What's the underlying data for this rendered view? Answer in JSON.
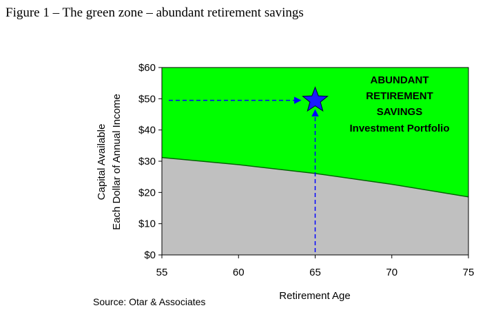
{
  "figure_title": "Figure 1 – The green zone – abundant retirement savings",
  "source": "Source: Otar & Associates",
  "chart_data": {
    "type": "area",
    "title": "",
    "xlabel": "Retirement Age",
    "ylabel_lines": [
      "Capital Available",
      "Each Dollar of Annual Income"
    ],
    "xlim": [
      55,
      75
    ],
    "ylim": [
      0,
      60
    ],
    "x_ticks": [
      55,
      60,
      65,
      70,
      75
    ],
    "x_tick_labels": [
      "55",
      "60",
      "65",
      "70",
      "75"
    ],
    "y_ticks": [
      0,
      10,
      20,
      30,
      40,
      50,
      60
    ],
    "y_tick_labels": [
      "$0",
      "$10",
      "$20",
      "$30",
      "$40",
      "$50",
      "$60"
    ],
    "boundary": {
      "x": [
        55,
        60,
        65,
        70,
        75
      ],
      "y": [
        31.2,
        28.9,
        26.1,
        22.6,
        18.6
      ]
    },
    "colors": {
      "upper_zone": "#00ff00",
      "lower_zone": "#c0c0c0",
      "boundary_line": "#006400",
      "arrow": "#0000ff",
      "star": "#1a1aff"
    },
    "annotation_lines": [
      "ABUNDANT",
      "RETIREMENT",
      "SAVINGS",
      "Investment Portfolio"
    ],
    "marker": {
      "x": 65,
      "y": 49.5,
      "shape": "star"
    },
    "grid": false
  }
}
